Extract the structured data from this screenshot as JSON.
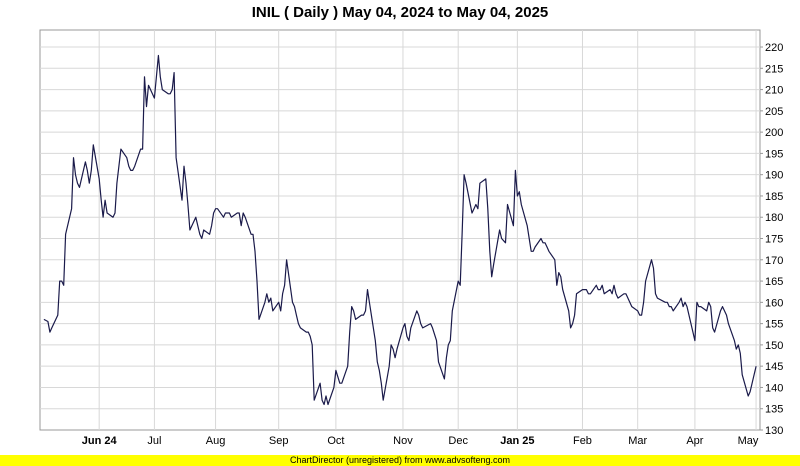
{
  "colors": {
    "line": "#1a1a4a",
    "grid": "#d8d8d8",
    "footer_bg": "#ffff00"
  },
  "footer": {
    "text": "ChartDirector (unregistered) from www.advsofteng.com"
  },
  "chart_data": {
    "type": "line",
    "title": "INIL ( Daily ) May 04, 2024 to May 04, 2025",
    "xlabel": "",
    "ylabel": "",
    "x_range": [
      "2024-05-04",
      "2025-05-04"
    ],
    "ylim": [
      130,
      224
    ],
    "y_ticks": [
      130,
      135,
      140,
      145,
      150,
      155,
      160,
      165,
      170,
      175,
      180,
      185,
      190,
      195,
      200,
      205,
      210,
      215,
      220
    ],
    "grid": true,
    "x_ticks": [
      {
        "label": "Jun 24",
        "date": "2024-06-03",
        "major": true
      },
      {
        "label": "Jul",
        "date": "2024-07-01",
        "major": false
      },
      {
        "label": "Aug",
        "date": "2024-08-01",
        "major": false
      },
      {
        "label": "Sep",
        "date": "2024-09-02",
        "major": false
      },
      {
        "label": "Oct",
        "date": "2024-10-01",
        "major": false
      },
      {
        "label": "Nov",
        "date": "2024-11-04",
        "major": false
      },
      {
        "label": "Dec",
        "date": "2024-12-02",
        "major": false
      },
      {
        "label": "Jan 25",
        "date": "2025-01-01",
        "major": true
      },
      {
        "label": "Feb",
        "date": "2025-02-03",
        "major": false
      },
      {
        "label": "Mar",
        "date": "2025-03-03",
        "major": false
      },
      {
        "label": "Apr",
        "date": "2025-04-01",
        "major": false
      },
      {
        "label": "May",
        "date": "2025-05-02",
        "major": false
      }
    ],
    "series": [
      {
        "values": [
          [
            "2024-05-06",
            156
          ],
          [
            "2024-05-08",
            155.5
          ],
          [
            "2024-05-09",
            153
          ],
          [
            "2024-05-10",
            154
          ],
          [
            "2024-05-13",
            157
          ],
          [
            "2024-05-14",
            165
          ],
          [
            "2024-05-15",
            165
          ],
          [
            "2024-05-16",
            164
          ],
          [
            "2024-05-17",
            176
          ],
          [
            "2024-05-20",
            182
          ],
          [
            "2024-05-21",
            194
          ],
          [
            "2024-05-22",
            190
          ],
          [
            "2024-05-23",
            188
          ],
          [
            "2024-05-24",
            187
          ],
          [
            "2024-05-27",
            193
          ],
          [
            "2024-05-28",
            191
          ],
          [
            "2024-05-29",
            188
          ],
          [
            "2024-05-30",
            191
          ],
          [
            "2024-05-31",
            197
          ],
          [
            "2024-06-03",
            189
          ],
          [
            "2024-06-04",
            184
          ],
          [
            "2024-06-05",
            180
          ],
          [
            "2024-06-06",
            184
          ],
          [
            "2024-06-07",
            181
          ],
          [
            "2024-06-10",
            180
          ],
          [
            "2024-06-11",
            181
          ],
          [
            "2024-06-12",
            188
          ],
          [
            "2024-06-13",
            192
          ],
          [
            "2024-06-14",
            196
          ],
          [
            "2024-06-17",
            194
          ],
          [
            "2024-06-18",
            192
          ],
          [
            "2024-06-19",
            191
          ],
          [
            "2024-06-20",
            191
          ],
          [
            "2024-06-21",
            192
          ],
          [
            "2024-06-24",
            196
          ],
          [
            "2024-06-25",
            196
          ],
          [
            "2024-06-26",
            213
          ],
          [
            "2024-06-27",
            206
          ],
          [
            "2024-06-28",
            211
          ],
          [
            "2024-07-01",
            208
          ],
          [
            "2024-07-02",
            213
          ],
          [
            "2024-07-03",
            218
          ],
          [
            "2024-07-04",
            213
          ],
          [
            "2024-07-05",
            210
          ],
          [
            "2024-07-08",
            209
          ],
          [
            "2024-07-09",
            209
          ],
          [
            "2024-07-10",
            210
          ],
          [
            "2024-07-11",
            214
          ],
          [
            "2024-07-12",
            194
          ],
          [
            "2024-07-15",
            184
          ],
          [
            "2024-07-16",
            192
          ],
          [
            "2024-07-17",
            188
          ],
          [
            "2024-07-18",
            183
          ],
          [
            "2024-07-19",
            177
          ],
          [
            "2024-07-22",
            180
          ],
          [
            "2024-07-23",
            178
          ],
          [
            "2024-07-24",
            176
          ],
          [
            "2024-07-25",
            175
          ],
          [
            "2024-07-26",
            177
          ],
          [
            "2024-07-29",
            176
          ],
          [
            "2024-07-30",
            178
          ],
          [
            "2024-07-31",
            181
          ],
          [
            "2024-08-01",
            182
          ],
          [
            "2024-08-02",
            182
          ],
          [
            "2024-08-05",
            180
          ],
          [
            "2024-08-06",
            181
          ],
          [
            "2024-08-07",
            181
          ],
          [
            "2024-08-08",
            181
          ],
          [
            "2024-08-09",
            180
          ],
          [
            "2024-08-12",
            181
          ],
          [
            "2024-08-13",
            181
          ],
          [
            "2024-08-14",
            178
          ],
          [
            "2024-08-15",
            181
          ],
          [
            "2024-08-16",
            180
          ],
          [
            "2024-08-19",
            176
          ],
          [
            "2024-08-20",
            176
          ],
          [
            "2024-08-21",
            172
          ],
          [
            "2024-08-22",
            165
          ],
          [
            "2024-08-23",
            156
          ],
          [
            "2024-08-26",
            160
          ],
          [
            "2024-08-27",
            162
          ],
          [
            "2024-08-28",
            160
          ],
          [
            "2024-08-29",
            161
          ],
          [
            "2024-08-30",
            158
          ],
          [
            "2024-09-02",
            160
          ],
          [
            "2024-09-03",
            158
          ],
          [
            "2024-09-04",
            162
          ],
          [
            "2024-09-05",
            164
          ],
          [
            "2024-09-06",
            170
          ],
          [
            "2024-09-09",
            160
          ],
          [
            "2024-09-10",
            159
          ],
          [
            "2024-09-11",
            157
          ],
          [
            "2024-09-12",
            155
          ],
          [
            "2024-09-13",
            154
          ],
          [
            "2024-09-16",
            153
          ],
          [
            "2024-09-17",
            153
          ],
          [
            "2024-09-18",
            152
          ],
          [
            "2024-09-19",
            150
          ],
          [
            "2024-09-20",
            137
          ],
          [
            "2024-09-23",
            141
          ],
          [
            "2024-09-24",
            137
          ],
          [
            "2024-09-25",
            136
          ],
          [
            "2024-09-26",
            138
          ],
          [
            "2024-09-27",
            136
          ],
          [
            "2024-09-30",
            140
          ],
          [
            "2024-10-01",
            144
          ],
          [
            "2024-10-03",
            141
          ],
          [
            "2024-10-04",
            141
          ],
          [
            "2024-10-07",
            145
          ],
          [
            "2024-10-08",
            153
          ],
          [
            "2024-10-09",
            159
          ],
          [
            "2024-10-10",
            158
          ],
          [
            "2024-10-11",
            156
          ],
          [
            "2024-10-14",
            157
          ],
          [
            "2024-10-15",
            157
          ],
          [
            "2024-10-16",
            158
          ],
          [
            "2024-10-17",
            163
          ],
          [
            "2024-10-18",
            160
          ],
          [
            "2024-10-21",
            151
          ],
          [
            "2024-10-22",
            146
          ],
          [
            "2024-10-23",
            144
          ],
          [
            "2024-10-24",
            141
          ],
          [
            "2024-10-25",
            137
          ],
          [
            "2024-10-28",
            145
          ],
          [
            "2024-10-29",
            150
          ],
          [
            "2024-10-30",
            149
          ],
          [
            "2024-10-31",
            147
          ],
          [
            "2024-11-01",
            149
          ],
          [
            "2024-11-04",
            154
          ],
          [
            "2024-11-05",
            155
          ],
          [
            "2024-11-06",
            152
          ],
          [
            "2024-11-07",
            151
          ],
          [
            "2024-11-08",
            154
          ],
          [
            "2024-11-11",
            158
          ],
          [
            "2024-11-12",
            157
          ],
          [
            "2024-11-13",
            155
          ],
          [
            "2024-11-14",
            154
          ],
          [
            "2024-11-18",
            155
          ],
          [
            "2024-11-19",
            154
          ],
          [
            "2024-11-21",
            151
          ],
          [
            "2024-11-22",
            146
          ],
          [
            "2024-11-25",
            142
          ],
          [
            "2024-11-26",
            147
          ],
          [
            "2024-11-27",
            150
          ],
          [
            "2024-11-28",
            151
          ],
          [
            "2024-11-29",
            158
          ],
          [
            "2024-12-02",
            165
          ],
          [
            "2024-12-03",
            164
          ],
          [
            "2024-12-04",
            176
          ],
          [
            "2024-12-05",
            190
          ],
          [
            "2024-12-06",
            188
          ],
          [
            "2024-12-09",
            181
          ],
          [
            "2024-12-10",
            182
          ],
          [
            "2024-12-11",
            183
          ],
          [
            "2024-12-12",
            182
          ],
          [
            "2024-12-13",
            188
          ],
          [
            "2024-12-16",
            189
          ],
          [
            "2024-12-17",
            182
          ],
          [
            "2024-12-18",
            172
          ],
          [
            "2024-12-19",
            166
          ],
          [
            "2024-12-20",
            169
          ],
          [
            "2024-12-23",
            177
          ],
          [
            "2024-12-24",
            175
          ],
          [
            "2024-12-26",
            174
          ],
          [
            "2024-12-27",
            183
          ],
          [
            "2024-12-30",
            178
          ],
          [
            "2024-12-31",
            191
          ],
          [
            "2025-01-01",
            185
          ],
          [
            "2025-01-02",
            186
          ],
          [
            "2025-01-03",
            183
          ],
          [
            "2025-01-06",
            178
          ],
          [
            "2025-01-07",
            175
          ],
          [
            "2025-01-08",
            172
          ],
          [
            "2025-01-09",
            172
          ],
          [
            "2025-01-10",
            173
          ],
          [
            "2025-01-13",
            175
          ],
          [
            "2025-01-14",
            174
          ],
          [
            "2025-01-15",
            174
          ],
          [
            "2025-01-16",
            173
          ],
          [
            "2025-01-17",
            172
          ],
          [
            "2025-01-20",
            170
          ],
          [
            "2025-01-21",
            164
          ],
          [
            "2025-01-22",
            167
          ],
          [
            "2025-01-23",
            166
          ],
          [
            "2025-01-24",
            163
          ],
          [
            "2025-01-27",
            158
          ],
          [
            "2025-01-28",
            154
          ],
          [
            "2025-01-29",
            155
          ],
          [
            "2025-01-30",
            157
          ],
          [
            "2025-01-31",
            162
          ],
          [
            "2025-02-03",
            163
          ],
          [
            "2025-02-04",
            163
          ],
          [
            "2025-02-05",
            163
          ],
          [
            "2025-02-06",
            162
          ],
          [
            "2025-02-07",
            162
          ],
          [
            "2025-02-10",
            164
          ],
          [
            "2025-02-11",
            163
          ],
          [
            "2025-02-12",
            163
          ],
          [
            "2025-02-13",
            164
          ],
          [
            "2025-02-14",
            162
          ],
          [
            "2025-02-17",
            163
          ],
          [
            "2025-02-18",
            162
          ],
          [
            "2025-02-19",
            164
          ],
          [
            "2025-02-20",
            162
          ],
          [
            "2025-02-21",
            161
          ],
          [
            "2025-02-24",
            162
          ],
          [
            "2025-02-25",
            162
          ],
          [
            "2025-02-27",
            160
          ],
          [
            "2025-02-28",
            159
          ],
          [
            "2025-03-03",
            158
          ],
          [
            "2025-03-04",
            157
          ],
          [
            "2025-03-05",
            157
          ],
          [
            "2025-03-06",
            160
          ],
          [
            "2025-03-07",
            165
          ],
          [
            "2025-03-10",
            170
          ],
          [
            "2025-03-11",
            168
          ],
          [
            "2025-03-12",
            162
          ],
          [
            "2025-03-13",
            161
          ],
          [
            "2025-03-17",
            160
          ],
          [
            "2025-03-18",
            160
          ],
          [
            "2025-03-19",
            159
          ],
          [
            "2025-03-20",
            159
          ],
          [
            "2025-03-21",
            158
          ],
          [
            "2025-03-24",
            160
          ],
          [
            "2025-03-25",
            161
          ],
          [
            "2025-03-26",
            159
          ],
          [
            "2025-03-27",
            160
          ],
          [
            "2025-03-28",
            159
          ],
          [
            "2025-04-01",
            151
          ],
          [
            "2025-04-02",
            160
          ],
          [
            "2025-04-03",
            159
          ],
          [
            "2025-04-04",
            159
          ],
          [
            "2025-04-07",
            158
          ],
          [
            "2025-04-08",
            160
          ],
          [
            "2025-04-09",
            159
          ],
          [
            "2025-04-10",
            154
          ],
          [
            "2025-04-11",
            153
          ],
          [
            "2025-04-14",
            158
          ],
          [
            "2025-04-15",
            159
          ],
          [
            "2025-04-16",
            158
          ],
          [
            "2025-04-17",
            157
          ],
          [
            "2025-04-18",
            155
          ],
          [
            "2025-04-21",
            151
          ],
          [
            "2025-04-22",
            149
          ],
          [
            "2025-04-23",
            150
          ],
          [
            "2025-04-24",
            148
          ],
          [
            "2025-04-25",
            143
          ],
          [
            "2025-04-28",
            138
          ],
          [
            "2025-04-29",
            139
          ],
          [
            "2025-04-30",
            141
          ],
          [
            "2025-05-02",
            145
          ]
        ]
      }
    ]
  }
}
